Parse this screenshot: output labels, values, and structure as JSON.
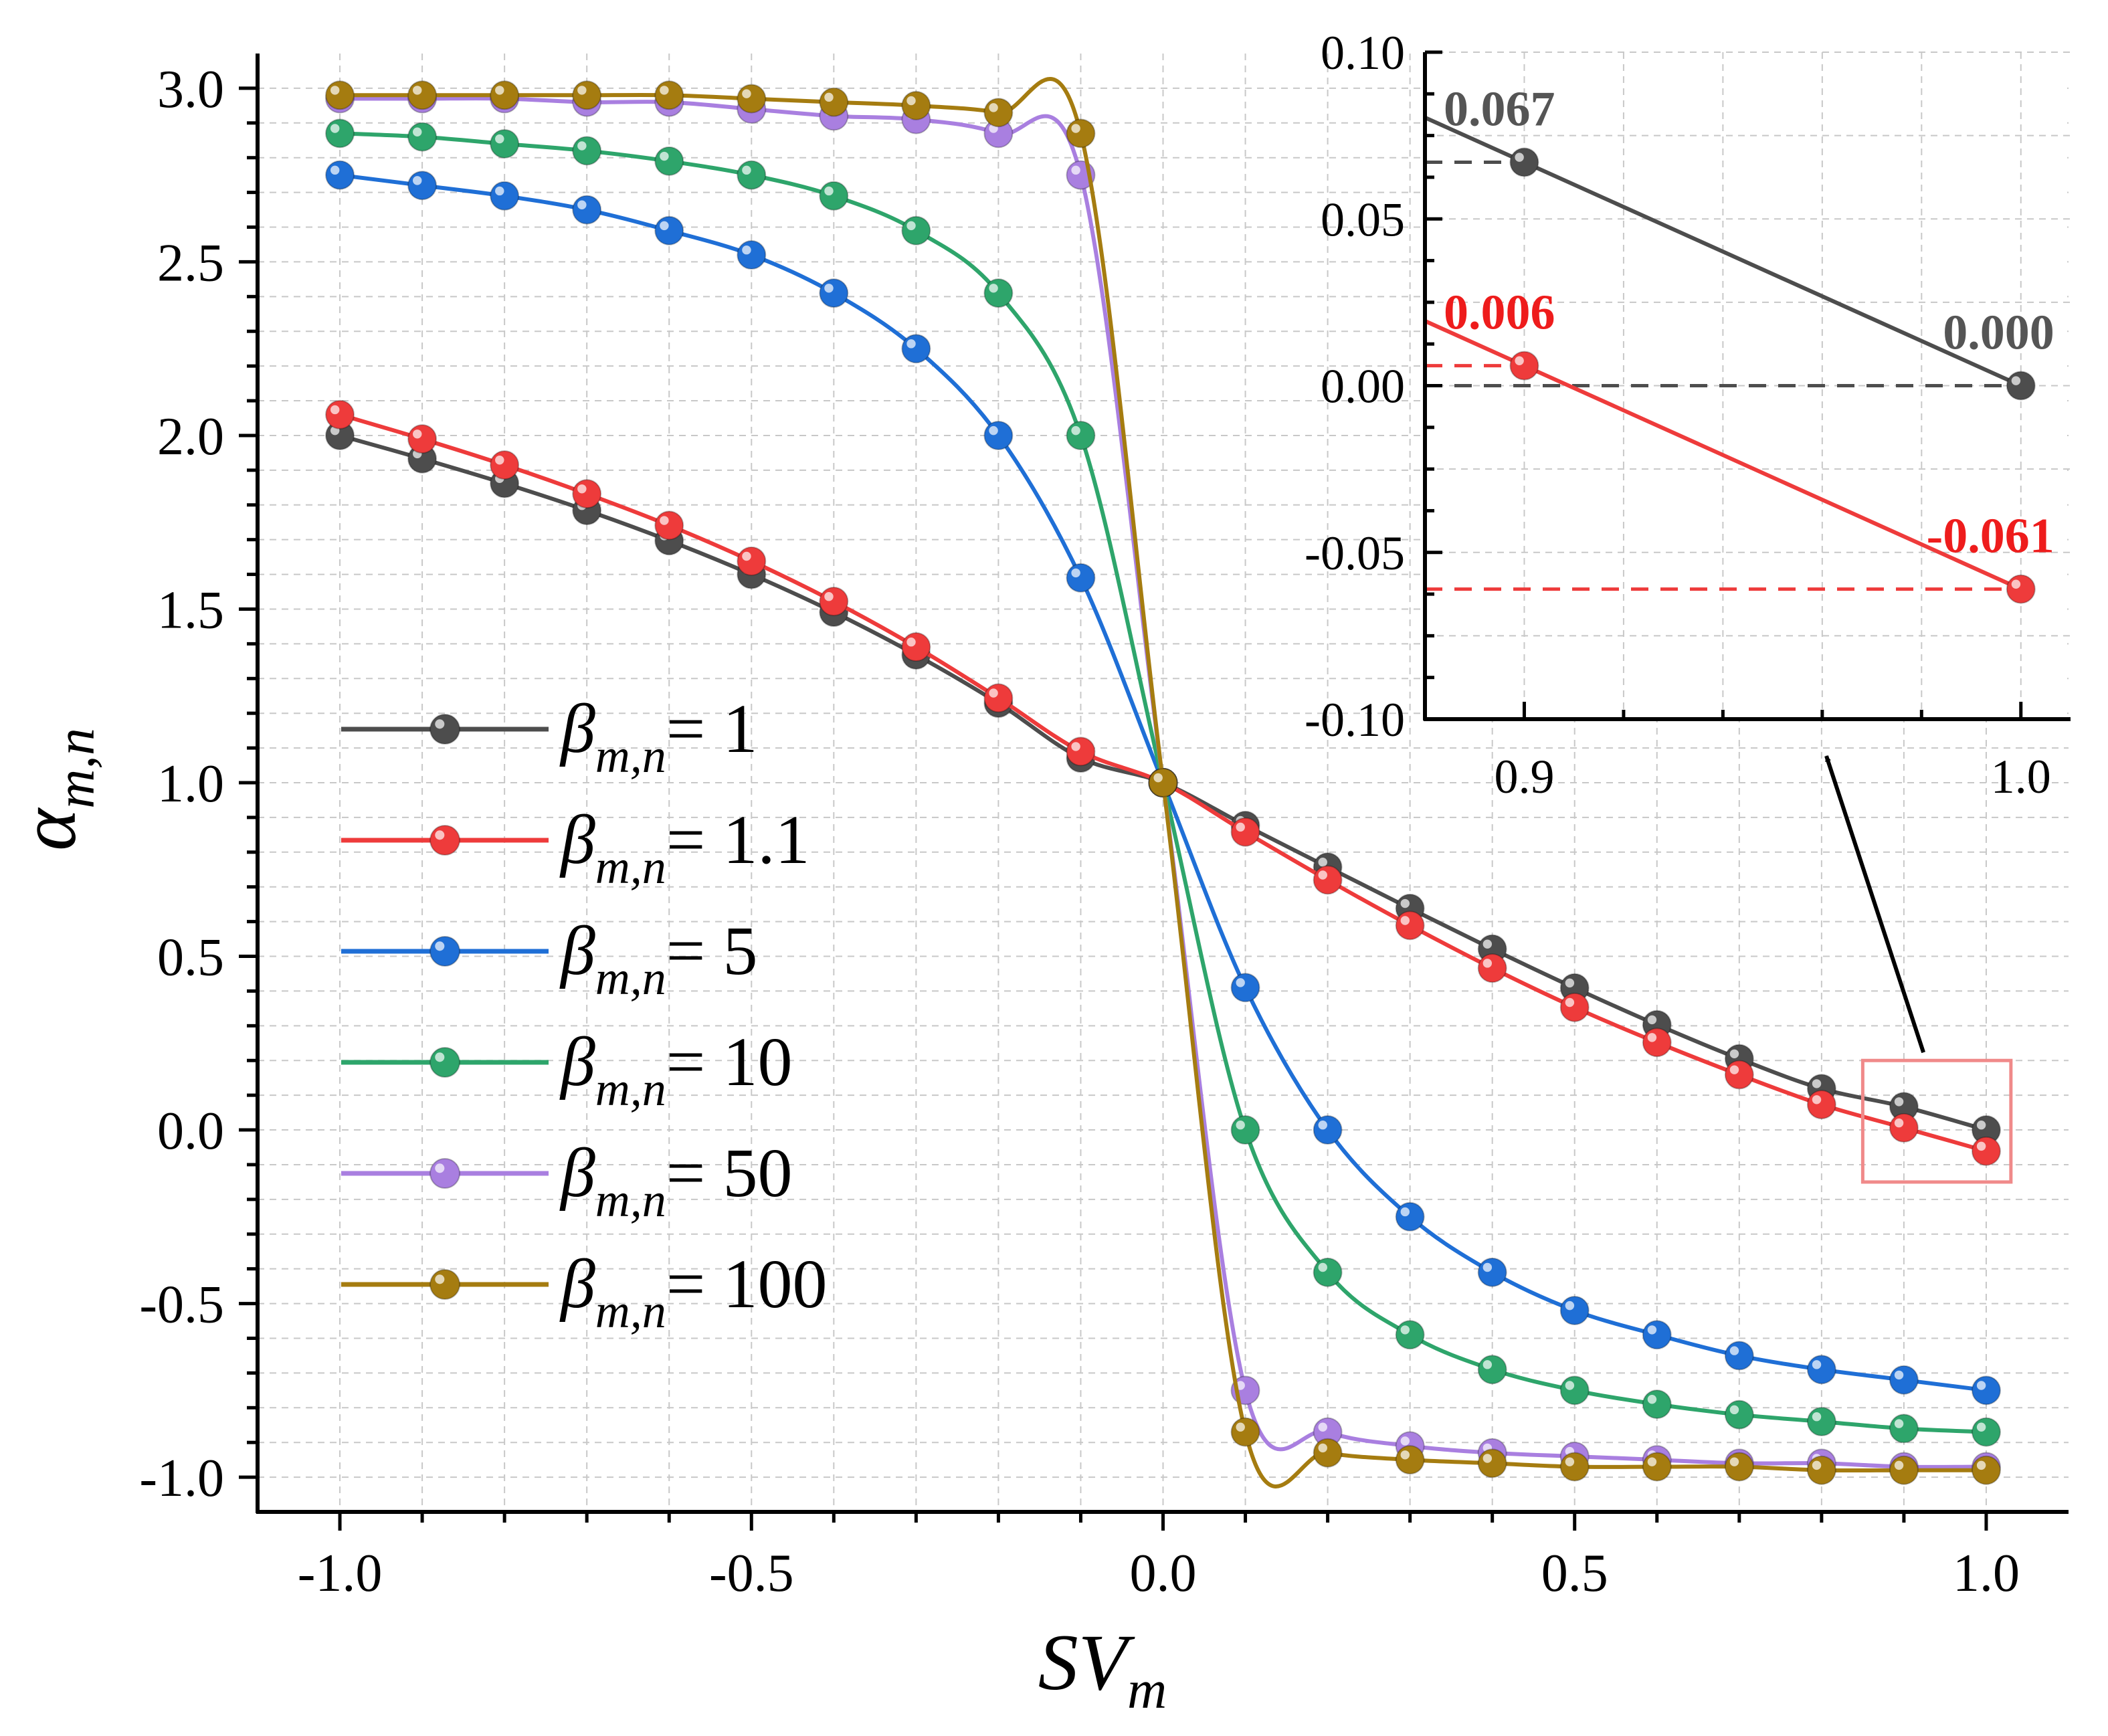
{
  "colors": {
    "beta_1": "#4d4d4d",
    "beta_1_1": "#ee3b3b",
    "beta_5": "#1f6fd6",
    "beta_10": "#2ea56b",
    "beta_50": "#a97fe0",
    "beta_100": "#a57c10",
    "annotation_gray": "#555555",
    "annotation_red": "#ee1c1c",
    "highlight_box": "#f08a8a",
    "grid": "#c8c8c8"
  },
  "chart_data": [
    {
      "type": "line",
      "id": "main",
      "xlabel": "SV",
      "xlabel_sub": "m",
      "ylabel": "α",
      "ylabel_sub": "m,n",
      "xlim": [
        -1.1,
        1.1
      ],
      "ylim": [
        -1.1,
        3.1
      ],
      "xticks": [
        -1.0,
        -0.5,
        0.0,
        0.5,
        1.0
      ],
      "xtick_labels": [
        "-1.0",
        "-0.5",
        "0.0",
        "0.5",
        "1.0"
      ],
      "yticks": [
        -1.0,
        -0.5,
        0.0,
        0.5,
        1.0,
        1.5,
        2.0,
        2.5,
        3.0
      ],
      "ytick_labels": [
        "-1.0",
        "-0.5",
        "0.0",
        "0.5",
        "1.0",
        "1.5",
        "2.0",
        "2.5",
        "3.0"
      ],
      "grid": true,
      "legend_position": "center-left",
      "legend_symbol": "β",
      "legend_sub": "m,n",
      "x": [
        -1.0,
        -0.9,
        -0.8,
        -0.7,
        -0.6,
        -0.5,
        -0.4,
        -0.3,
        -0.2,
        -0.1,
        0.0,
        0.1,
        0.2,
        0.3,
        0.4,
        0.5,
        0.6,
        0.7,
        0.8,
        0.9,
        1.0
      ],
      "series": [
        {
          "key": "beta_1",
          "name": "1",
          "label": "= 1",
          "values": [
            2.0,
            1.933,
            1.862,
            1.784,
            1.697,
            1.6,
            1.491,
            1.368,
            1.229,
            1.071,
            1.0,
            0.877,
            0.757,
            0.638,
            0.521,
            0.409,
            0.303,
            0.205,
            0.119,
            0.067,
            0.0
          ]
        },
        {
          "key": "beta_1_1",
          "name": "1.1",
          "label": "= 1.1",
          "values": [
            2.06,
            1.99,
            1.915,
            1.832,
            1.741,
            1.638,
            1.522,
            1.391,
            1.244,
            1.09,
            1.0,
            0.858,
            0.72,
            0.589,
            0.466,
            0.353,
            0.252,
            0.159,
            0.073,
            0.006,
            -0.061
          ]
        },
        {
          "key": "beta_5",
          "name": "5",
          "label": "= 5",
          "values": [
            2.75,
            2.72,
            2.69,
            2.65,
            2.59,
            2.52,
            2.41,
            2.25,
            2.0,
            1.59,
            1.0,
            0.41,
            0.0,
            -0.25,
            -0.41,
            -0.52,
            -0.59,
            -0.65,
            -0.69,
            -0.72,
            -0.75
          ]
        },
        {
          "key": "beta_10",
          "name": "10",
          "label": "= 10",
          "values": [
            2.87,
            2.86,
            2.84,
            2.82,
            2.79,
            2.75,
            2.69,
            2.59,
            2.41,
            2.0,
            1.0,
            0.0,
            -0.41,
            -0.59,
            -0.69,
            -0.75,
            -0.79,
            -0.82,
            -0.84,
            -0.86,
            -0.87
          ]
        },
        {
          "key": "beta_50",
          "name": "50",
          "label": "= 50",
          "values": [
            2.97,
            2.97,
            2.97,
            2.96,
            2.96,
            2.94,
            2.92,
            2.91,
            2.87,
            2.75,
            1.0,
            -0.75,
            -0.87,
            -0.91,
            -0.93,
            -0.94,
            -0.95,
            -0.96,
            -0.96,
            -0.97,
            -0.97
          ]
        },
        {
          "key": "beta_100",
          "name": "100",
          "label": "= 100",
          "values": [
            2.98,
            2.98,
            2.98,
            2.98,
            2.98,
            2.97,
            2.96,
            2.95,
            2.93,
            2.87,
            1.0,
            -0.87,
            -0.93,
            -0.95,
            -0.96,
            -0.97,
            -0.97,
            -0.97,
            -0.98,
            -0.98,
            -0.98
          ]
        }
      ]
    },
    {
      "type": "line",
      "id": "inset",
      "xlim": [
        0.88,
        1.01
      ],
      "ylim": [
        -0.1,
        0.1
      ],
      "xticks": [
        0.9,
        1.0
      ],
      "xtick_labels": [
        "0.9",
        "1.0"
      ],
      "yticks": [
        -0.1,
        -0.05,
        0.0,
        0.05,
        0.1
      ],
      "ytick_labels": [
        "-0.10",
        "-0.05",
        "0.00",
        "0.05",
        "0.10"
      ],
      "x": [
        0.9,
        1.0
      ],
      "series": [
        {
          "key": "beta_1",
          "name": "1",
          "values": [
            0.067,
            0.0
          ]
        },
        {
          "key": "beta_1_1",
          "name": "1.1",
          "values": [
            0.006,
            -0.061
          ]
        }
      ],
      "reference_lines": [
        {
          "key": "beta_1",
          "y": 0.067,
          "x_end": 0.9
        },
        {
          "key": "beta_1",
          "y": 0.0,
          "x_end": 1.0
        },
        {
          "key": "beta_1_1",
          "y": 0.006,
          "x_end": 0.9
        },
        {
          "key": "beta_1_1",
          "y": -0.061,
          "x_end": 1.0
        }
      ],
      "annotations": [
        {
          "text": "0.067",
          "series": "beta_1",
          "x": 0.9
        },
        {
          "text": "0.000",
          "series": "beta_1",
          "x": 1.0
        },
        {
          "text": "0.006",
          "series": "beta_1_1",
          "x": 0.9
        },
        {
          "text": "-0.061",
          "series": "beta_1_1",
          "x": 1.0
        }
      ],
      "zoom_region": {
        "x": [
          0.85,
          1.03
        ],
        "y": [
          -0.15,
          0.2
        ]
      }
    }
  ]
}
